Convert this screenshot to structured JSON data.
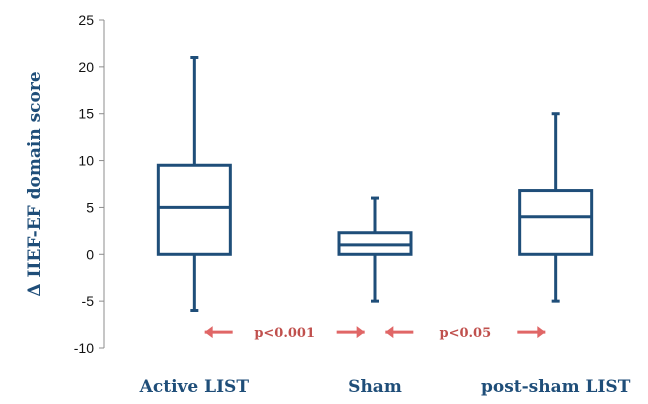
{
  "chart_data": {
    "type": "boxplot",
    "ylabel": "Δ IIEF-EF domain score",
    "ylim": [
      -10,
      25
    ],
    "yticks": [
      -10,
      -5,
      0,
      5,
      10,
      15,
      20,
      25
    ],
    "grid": false,
    "categories": [
      "Active LIST",
      "Sham",
      "post-sham LIST"
    ],
    "boxes": [
      {
        "category": "Active LIST",
        "min": -6,
        "q1": 0,
        "median": 5,
        "q3": 9.5,
        "max": 21
      },
      {
        "category": "Sham",
        "min": -5,
        "q1": 0,
        "median": 1,
        "q3": 2.3,
        "max": 6
      },
      {
        "category": "post-sham LIST",
        "min": -5,
        "q1": 0,
        "median": 4,
        "q3": 6.8,
        "max": 15
      }
    ],
    "annotations": [
      {
        "text": "p<0.001",
        "between": [
          "Active LIST",
          "Sham"
        ]
      },
      {
        "text": "p<0.05",
        "between": [
          "Sham",
          "post-sham LIST"
        ]
      }
    ],
    "colors": {
      "box": "#1f4e79",
      "axis": "#8c8c8c",
      "arrow": "#e06666",
      "label": "#1f4e79",
      "annotation": "#c0504d"
    }
  }
}
